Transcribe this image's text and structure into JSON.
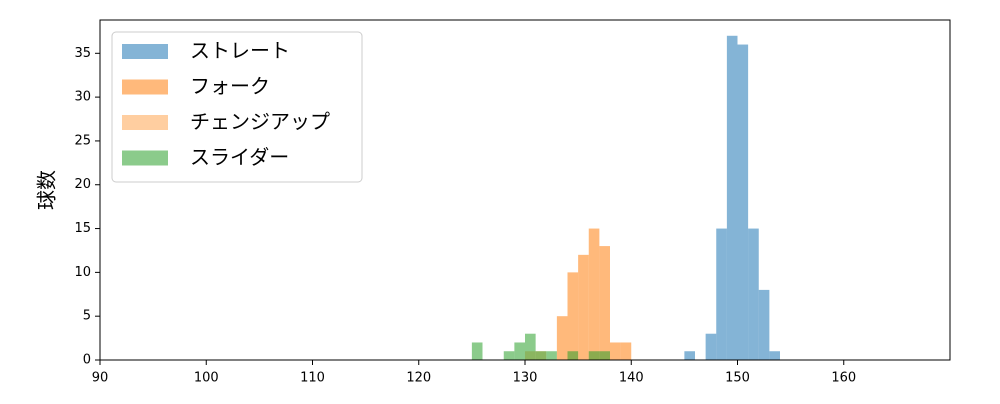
{
  "chart_data": {
    "type": "histogram",
    "y_label": "球数",
    "xlim": [
      90,
      170
    ],
    "xticks": [
      90,
      100,
      110,
      120,
      130,
      140,
      150,
      160
    ],
    "ylim": [
      0,
      38.8
    ],
    "yticks": [
      0,
      5,
      10,
      15,
      20,
      25,
      30,
      35
    ],
    "legend": "upper left",
    "series": [
      {
        "name": "ストレート",
        "color": "#1f77b4",
        "bins": [
          145,
          146,
          147,
          148,
          149,
          150,
          151,
          152,
          153,
          154
        ],
        "values": [
          1,
          0,
          3,
          15,
          37,
          36,
          15,
          8,
          1
        ]
      },
      {
        "name": "フォーク",
        "color": "#ff7f0e",
        "bins": [
          133,
          134,
          135,
          136,
          137,
          138,
          139,
          140
        ],
        "values": [
          5,
          10,
          12,
          15,
          13,
          2,
          2
        ]
      },
      {
        "name": "チェンジアップ",
        "color": "#ffa552",
        "bins": [
          130,
          131,
          132
        ],
        "values": [
          1,
          1
        ]
      },
      {
        "name": "スライダー",
        "color": "#2ca02c",
        "bins": [
          125,
          126,
          127,
          128,
          129,
          130,
          131,
          132,
          133,
          134,
          135,
          136,
          137,
          138
        ],
        "values": [
          2,
          0,
          0,
          1,
          2,
          3,
          1,
          1,
          0,
          1,
          0,
          1,
          1
        ]
      }
    ]
  }
}
